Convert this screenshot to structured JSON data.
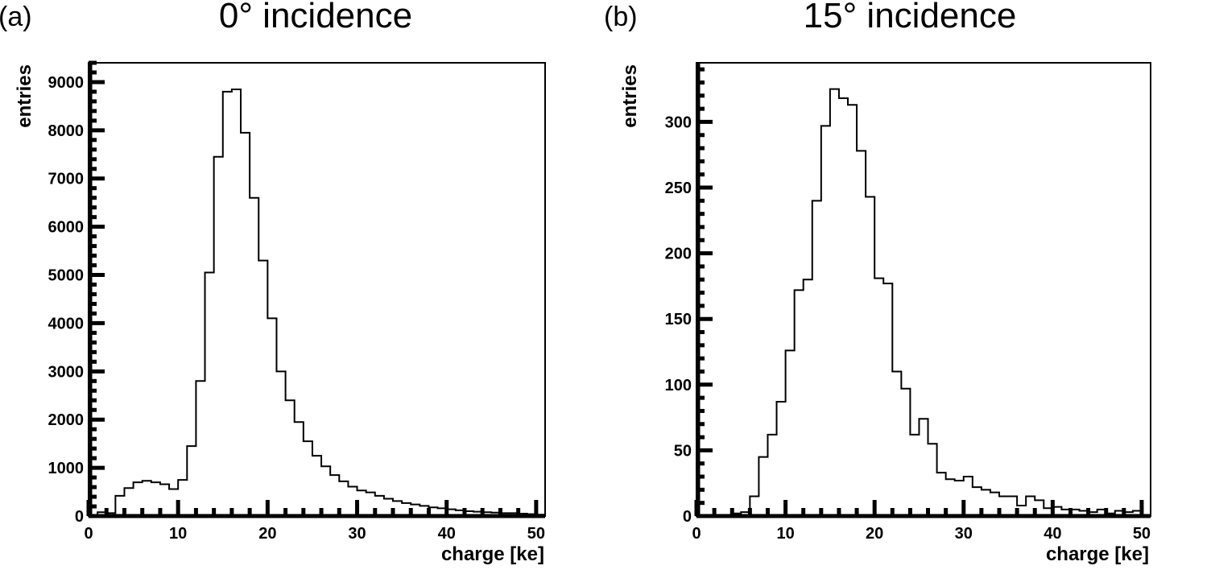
{
  "chart_data": [
    {
      "type": "histogram",
      "panel_label": "(a)",
      "title": "0° incidence",
      "xlabel": "charge [ke]",
      "ylabel": "entries",
      "xlim": [
        0,
        51
      ],
      "ylim": [
        0,
        9400
      ],
      "xticks": [
        0,
        10,
        20,
        30,
        40,
        50
      ],
      "yticks": [
        0,
        1000,
        2000,
        3000,
        4000,
        5000,
        6000,
        7000,
        8000,
        9000
      ],
      "ytick_labels": [
        "0",
        "1000",
        "2000",
        "3000",
        "4000",
        "5000",
        "6000",
        "7000",
        "8000",
        "9000"
      ],
      "bin_width": 1,
      "bin_start": 0,
      "values": [
        0,
        80,
        60,
        420,
        580,
        700,
        730,
        700,
        660,
        560,
        750,
        1450,
        2800,
        5050,
        7450,
        8800,
        8850,
        7950,
        6600,
        5300,
        4100,
        3000,
        2400,
        1950,
        1550,
        1250,
        1030,
        850,
        720,
        610,
        530,
        490,
        420,
        360,
        310,
        270,
        240,
        210,
        180,
        160,
        140,
        120,
        100,
        90,
        80,
        70,
        60,
        60,
        50,
        40,
        30
      ]
    },
    {
      "type": "histogram",
      "panel_label": "(b)",
      "title": "15° incidence",
      "xlabel": "charge [ke]",
      "ylabel": "entries",
      "xlim": [
        0,
        51
      ],
      "ylim": [
        0,
        345
      ],
      "xticks": [
        0,
        10,
        20,
        30,
        40,
        50
      ],
      "yticks": [
        0,
        50,
        100,
        150,
        200,
        250,
        300
      ],
      "ytick_labels": [
        "0",
        "50",
        "100",
        "150",
        "200",
        "250",
        "300"
      ],
      "bin_width": 1,
      "bin_start": 0,
      "values": [
        0,
        0,
        0,
        0,
        2,
        3,
        15,
        45,
        62,
        87,
        126,
        172,
        180,
        240,
        297,
        325,
        318,
        313,
        278,
        243,
        181,
        177,
        110,
        97,
        62,
        74,
        55,
        33,
        28,
        27,
        30,
        22,
        20,
        18,
        15,
        15,
        8,
        15,
        12,
        6,
        7,
        5,
        5,
        4,
        3,
        5,
        2,
        4,
        3,
        4,
        0
      ]
    }
  ]
}
